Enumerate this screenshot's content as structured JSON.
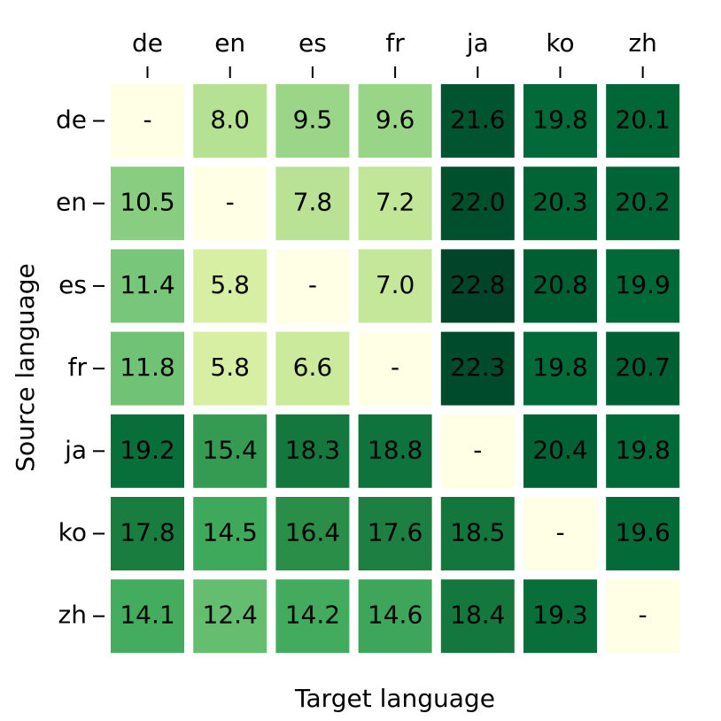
{
  "chart_data": {
    "type": "heatmap",
    "xlabel": "Target language",
    "ylabel": "Source language",
    "x_categories": [
      "de",
      "en",
      "es",
      "fr",
      "ja",
      "ko",
      "zh"
    ],
    "y_categories": [
      "de",
      "en",
      "es",
      "fr",
      "ja",
      "ko",
      "zh"
    ],
    "colormap": "YlGn",
    "values": [
      [
        null,
        8.0,
        9.5,
        9.6,
        21.6,
        19.8,
        20.1
      ],
      [
        10.5,
        null,
        7.8,
        7.2,
        22.0,
        20.3,
        20.2
      ],
      [
        11.4,
        5.8,
        null,
        7.0,
        22.8,
        20.8,
        19.9
      ],
      [
        11.8,
        5.8,
        6.6,
        null,
        22.3,
        19.8,
        20.7
      ],
      [
        19.2,
        15.4,
        18.3,
        18.8,
        null,
        20.4,
        19.8
      ],
      [
        17.8,
        14.5,
        16.4,
        17.6,
        18.5,
        null,
        19.6
      ],
      [
        14.1,
        12.4,
        14.2,
        14.6,
        18.4,
        19.3,
        null
      ]
    ],
    "value_labels": [
      [
        "-",
        "8.0",
        "9.5",
        "9.6",
        "21.6",
        "19.8",
        "20.1"
      ],
      [
        "10.5",
        "-",
        "7.8",
        "7.2",
        "22.0",
        "20.3",
        "20.2"
      ],
      [
        "11.4",
        "5.8",
        "-",
        "7.0",
        "22.8",
        "20.8",
        "19.9"
      ],
      [
        "11.8",
        "5.8",
        "6.6",
        "-",
        "22.3",
        "19.8",
        "20.7"
      ],
      [
        "19.2",
        "15.4",
        "18.3",
        "18.8",
        "-",
        "20.4",
        "19.8"
      ],
      [
        "17.8",
        "14.5",
        "16.4",
        "17.6",
        "18.5",
        "-",
        "19.6"
      ],
      [
        "14.1",
        "12.4",
        "14.2",
        "14.6",
        "18.4",
        "19.3",
        "-"
      ]
    ]
  }
}
